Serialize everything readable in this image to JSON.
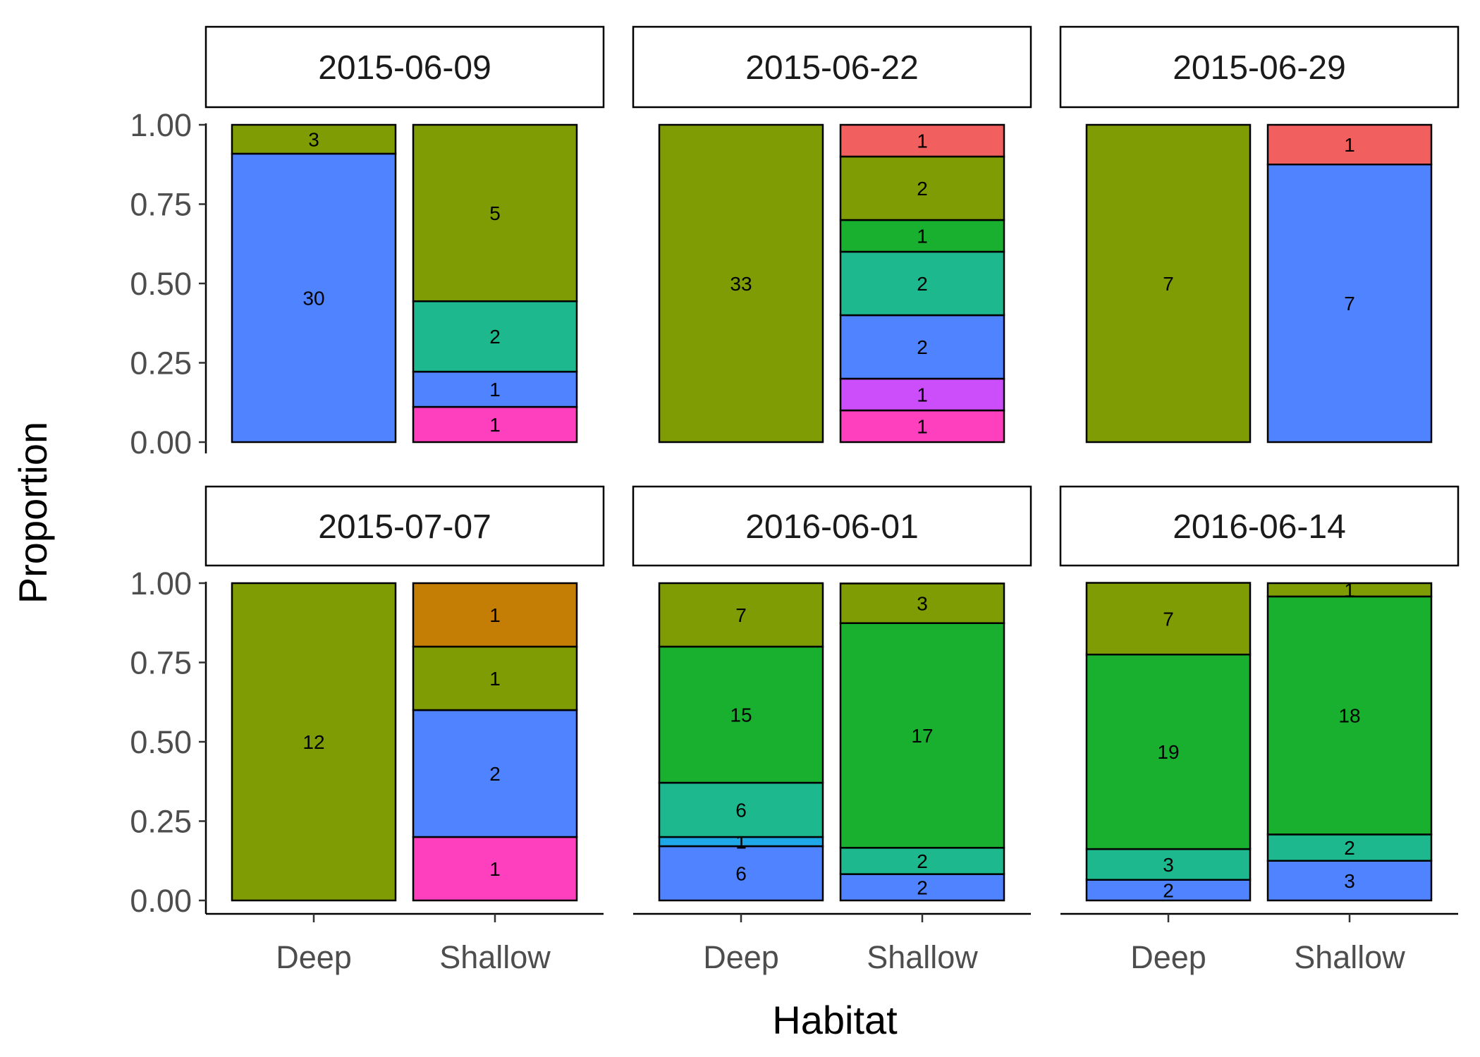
{
  "chart_data": {
    "type": "bar",
    "stacked": true,
    "position": "fill",
    "xlabel": "Habitat",
    "ylabel": "Proportion",
    "categories": [
      "Deep",
      "Shallow"
    ],
    "ylim": [
      0,
      1
    ],
    "yticks": [
      "0.00",
      "0.25",
      "0.50",
      "0.75",
      "1.00"
    ],
    "grid": false,
    "legend": "none",
    "facets": [
      {
        "title": "2015-06-09",
        "bars": [
          {
            "category": "Deep",
            "segments": [
              {
                "color": "#4F83FF",
                "count": 30,
                "proportion": 0.909
              },
              {
                "color": "#7F9C05",
                "count": 3,
                "proportion": 0.091
              }
            ]
          },
          {
            "category": "Shallow",
            "segments": [
              {
                "color": "#FF40BE",
                "count": 1,
                "proportion": 0.111
              },
              {
                "color": "#4F83FF",
                "count": 1,
                "proportion": 0.111
              },
              {
                "color": "#1DB88E",
                "count": 2,
                "proportion": 0.222
              },
              {
                "color": "#7F9C05",
                "count": 5,
                "proportion": 0.556
              }
            ]
          }
        ]
      },
      {
        "title": "2015-06-22",
        "bars": [
          {
            "category": "Deep",
            "segments": [
              {
                "color": "#7F9C05",
                "count": 33,
                "proportion": 1.0
              }
            ]
          },
          {
            "category": "Shallow",
            "segments": [
              {
                "color": "#FF40BE",
                "count": 1,
                "proportion": 0.1
              },
              {
                "color": "#CC4DFA",
                "count": 1,
                "proportion": 0.1
              },
              {
                "color": "#4F83FF",
                "count": 2,
                "proportion": 0.2
              },
              {
                "color": "#1DB88E",
                "count": 2,
                "proportion": 0.2
              },
              {
                "color": "#18B02E",
                "count": 1,
                "proportion": 0.1
              },
              {
                "color": "#7F9C05",
                "count": 2,
                "proportion": 0.2
              },
              {
                "color": "#F25F5F",
                "count": 1,
                "proportion": 0.1
              }
            ]
          }
        ]
      },
      {
        "title": "2015-06-29",
        "bars": [
          {
            "category": "Deep",
            "segments": [
              {
                "color": "#7F9C05",
                "count": 7,
                "proportion": 1.0
              }
            ]
          },
          {
            "category": "Shallow",
            "segments": [
              {
                "color": "#4F83FF",
                "count": 7,
                "proportion": 0.875
              },
              {
                "color": "#F25F5F",
                "count": 1,
                "proportion": 0.125
              }
            ]
          }
        ]
      },
      {
        "title": "2015-07-07",
        "bars": [
          {
            "category": "Deep",
            "segments": [
              {
                "color": "#7F9C05",
                "count": 12,
                "proportion": 1.0
              }
            ]
          },
          {
            "category": "Shallow",
            "segments": [
              {
                "color": "#FF40BE",
                "count": 1,
                "proportion": 0.2
              },
              {
                "color": "#4F83FF",
                "count": 2,
                "proportion": 0.4
              },
              {
                "color": "#7F9C05",
                "count": 1,
                "proportion": 0.2
              },
              {
                "color": "#C47E05",
                "count": 1,
                "proportion": 0.2
              }
            ]
          }
        ]
      },
      {
        "title": "2016-06-01",
        "bars": [
          {
            "category": "Deep",
            "segments": [
              {
                "color": "#4F83FF",
                "count": 6,
                "proportion": 0.171
              },
              {
                "color": "#1FA8E8",
                "count": 1,
                "proportion": 0.029
              },
              {
                "color": "#1DB88E",
                "count": 6,
                "proportion": 0.171
              },
              {
                "color": "#18B02E",
                "count": 15,
                "proportion": 0.429
              },
              {
                "color": "#7F9C05",
                "count": 7,
                "proportion": 0.2
              }
            ]
          },
          {
            "category": "Shallow",
            "segments": [
              {
                "color": "#4F83FF",
                "count": 2,
                "proportion": 0.083
              },
              {
                "color": "#1DB88E",
                "count": 2,
                "proportion": 0.083
              },
              {
                "color": "#18B02E",
                "count": 17,
                "proportion": 0.708
              },
              {
                "color": "#7F9C05",
                "count": 3,
                "proportion": 0.125
              }
            ]
          }
        ]
      },
      {
        "title": "2016-06-14",
        "bars": [
          {
            "category": "Deep",
            "segments": [
              {
                "color": "#4F83FF",
                "count": 2,
                "proportion": 0.065
              },
              {
                "color": "#1DB88E",
                "count": 3,
                "proportion": 0.097
              },
              {
                "color": "#18B02E",
                "count": 19,
                "proportion": 0.613
              },
              {
                "color": "#7F9C05",
                "count": 7,
                "proportion": 0.226
              }
            ]
          },
          {
            "category": "Shallow",
            "segments": [
              {
                "color": "#4F83FF",
                "count": 3,
                "proportion": 0.125
              },
              {
                "color": "#1DB88E",
                "count": 2,
                "proportion": 0.083
              },
              {
                "color": "#18B02E",
                "count": 18,
                "proportion": 0.75
              },
              {
                "color": "#7F9C05",
                "count": 1,
                "proportion": 0.042
              }
            ]
          }
        ]
      }
    ]
  }
}
